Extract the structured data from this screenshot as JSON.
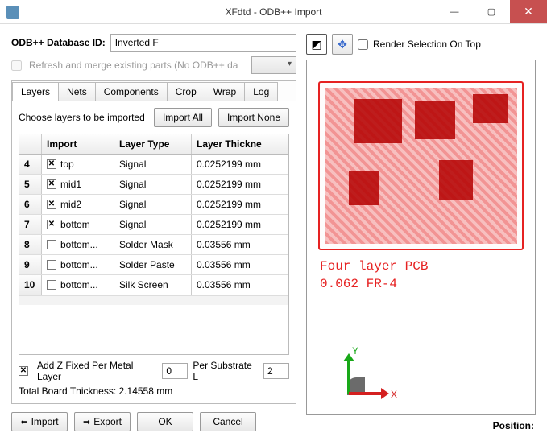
{
  "window": {
    "title": "XFdtd - ODB++ Import"
  },
  "id_row": {
    "label": "ODB++ Database ID:",
    "value": "Inverted F"
  },
  "refresh": {
    "label": "Refresh and merge existing parts (No ODB++ da",
    "checked": false
  },
  "tabs": {
    "items": [
      "Layers",
      "Nets",
      "Components",
      "Crop",
      "Wrap",
      "Log"
    ],
    "active": 0
  },
  "layers_tab": {
    "choose_label": "Choose layers to be imported",
    "import_all": "Import All",
    "import_none": "Import None",
    "columns": [
      "",
      "Import",
      "Layer Type",
      "Layer Thickne"
    ],
    "rows": [
      {
        "idx": "4",
        "checked": true,
        "name": "top",
        "type": "Signal",
        "thick": "0.0252199 mm"
      },
      {
        "idx": "5",
        "checked": true,
        "name": "mid1",
        "type": "Signal",
        "thick": "0.0252199 mm"
      },
      {
        "idx": "6",
        "checked": true,
        "name": "mid2",
        "type": "Signal",
        "thick": "0.0252199 mm"
      },
      {
        "idx": "7",
        "checked": true,
        "name": "bottom",
        "type": "Signal",
        "thick": "0.0252199 mm"
      },
      {
        "idx": "8",
        "checked": false,
        "name": "bottom...",
        "type": "Solder Mask",
        "thick": "0.03556 mm"
      },
      {
        "idx": "9",
        "checked": false,
        "name": "bottom...",
        "type": "Solder Paste",
        "thick": "0.03556 mm"
      },
      {
        "idx": "10",
        "checked": false,
        "name": "bottom...",
        "type": "Silk Screen",
        "thick": "0.03556 mm"
      }
    ],
    "add_z_label": "Add Z Fixed  Per Metal Layer",
    "add_z_checked": true,
    "per_metal_value": "0",
    "per_substrate_label": "Per Substrate L",
    "per_substrate_value": "2",
    "total_label": "Total Board Thickness: 2.14558 mm"
  },
  "buttons": {
    "import": "Import",
    "export": "Export",
    "ok": "OK",
    "cancel": "Cancel"
  },
  "preview": {
    "render_top_label": "Render Selection On Top",
    "render_top_checked": false,
    "pcb_line1": "Four layer PCB",
    "pcb_line2": "0.062 FR-4",
    "axis_x": "X",
    "axis_y": "Y"
  },
  "position_label": "Position:"
}
